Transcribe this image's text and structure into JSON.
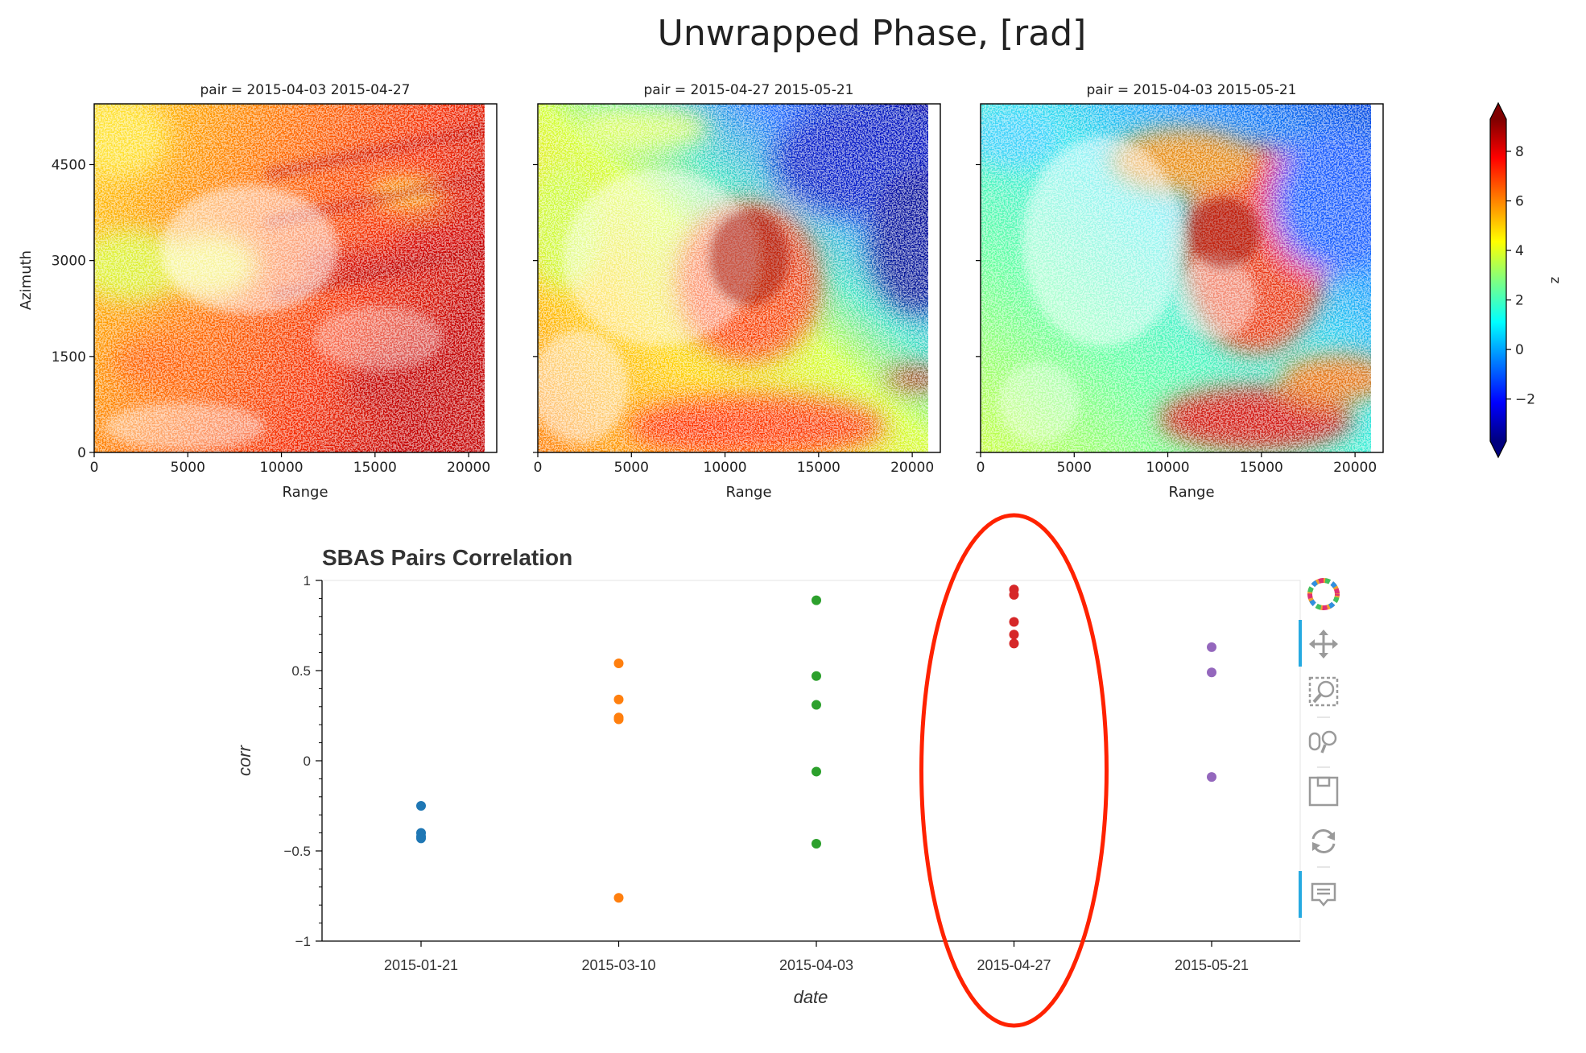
{
  "figure_title": "Unwrapped Phase, [rad]",
  "colorbar": {
    "label": "z",
    "ticks": [
      "8",
      "6",
      "4",
      "2",
      "0",
      "−2"
    ],
    "values": [
      8,
      6,
      4,
      2,
      0,
      -2
    ],
    "range": [
      -3.7,
      9.3
    ],
    "colormap": [
      "#00007f",
      "#0000ff",
      "#0080ff",
      "#00ffff",
      "#80ff80",
      "#ffff00",
      "#ff8000",
      "#ff0000",
      "#7f0000"
    ]
  },
  "phase_panels": [
    {
      "title": "pair = 2015-04-03 2015-04-27",
      "xlabel": "Range",
      "ylabel": "Azimuth"
    },
    {
      "title": "pair = 2015-04-27 2015-05-21",
      "xlabel": "Range",
      "ylabel": ""
    },
    {
      "title": "pair = 2015-04-03 2015-05-21",
      "xlabel": "Range",
      "ylabel": ""
    }
  ],
  "phase_axes": {
    "x_ticks": [
      "0",
      "5000",
      "10000",
      "15000",
      "20000"
    ],
    "x_tick_values": [
      0,
      5000,
      10000,
      15000,
      20000
    ],
    "xlim": [
      0,
      21500
    ],
    "y_ticks": [
      "0",
      "1500",
      "3000",
      "4500"
    ],
    "y_tick_values": [
      0,
      1500,
      3000,
      4500
    ],
    "ylim": [
      0,
      5450
    ]
  },
  "chart_data": {
    "type": "scatter",
    "title": "SBAS Pairs Correlation",
    "xlabel": "date",
    "ylabel": "corr",
    "categories": [
      "2015-01-21",
      "2015-03-10",
      "2015-04-03",
      "2015-04-27",
      "2015-05-21"
    ],
    "ylim": [
      -1,
      1
    ],
    "y_ticks": [
      1,
      0.5,
      0,
      -0.5,
      -1
    ],
    "y_tick_labels": [
      "1",
      "0.5",
      "0",
      "−0.5",
      "−1"
    ],
    "series": [
      {
        "name": "2015-01-21",
        "color": "#1f77b4",
        "values": [
          -0.25,
          -0.4,
          -0.42,
          -0.43
        ]
      },
      {
        "name": "2015-03-10",
        "color": "#ff7f0e",
        "values": [
          0.54,
          0.34,
          0.24,
          0.23,
          -0.76
        ]
      },
      {
        "name": "2015-04-03",
        "color": "#2ca02c",
        "values": [
          0.89,
          0.47,
          0.31,
          -0.06,
          -0.46
        ]
      },
      {
        "name": "2015-04-27",
        "color": "#d62728",
        "values": [
          0.95,
          0.92,
          0.77,
          0.7,
          0.65
        ]
      },
      {
        "name": "2015-05-21",
        "color": "#9467bd",
        "values": [
          0.63,
          0.49,
          -0.09
        ]
      }
    ],
    "highlight": {
      "category": "2015-04-27",
      "color": "#ff2200"
    }
  },
  "toolbar": {
    "tools": [
      {
        "name": "bokeh-logo-icon",
        "color": "#e36"
      },
      {
        "name": "pan-tool-icon",
        "color": "#9a9a9a"
      },
      {
        "name": "box-zoom-tool-icon",
        "color": "#9a9a9a"
      },
      {
        "name": "wheel-zoom-tool-icon",
        "color": "#9a9a9a"
      },
      {
        "name": "save-tool-icon",
        "color": "#9a9a9a"
      },
      {
        "name": "reset-tool-icon",
        "color": "#9a9a9a"
      },
      {
        "name": "hover-tool-icon",
        "color": "#9a9a9a"
      }
    ],
    "active_color": "#26aae1"
  }
}
